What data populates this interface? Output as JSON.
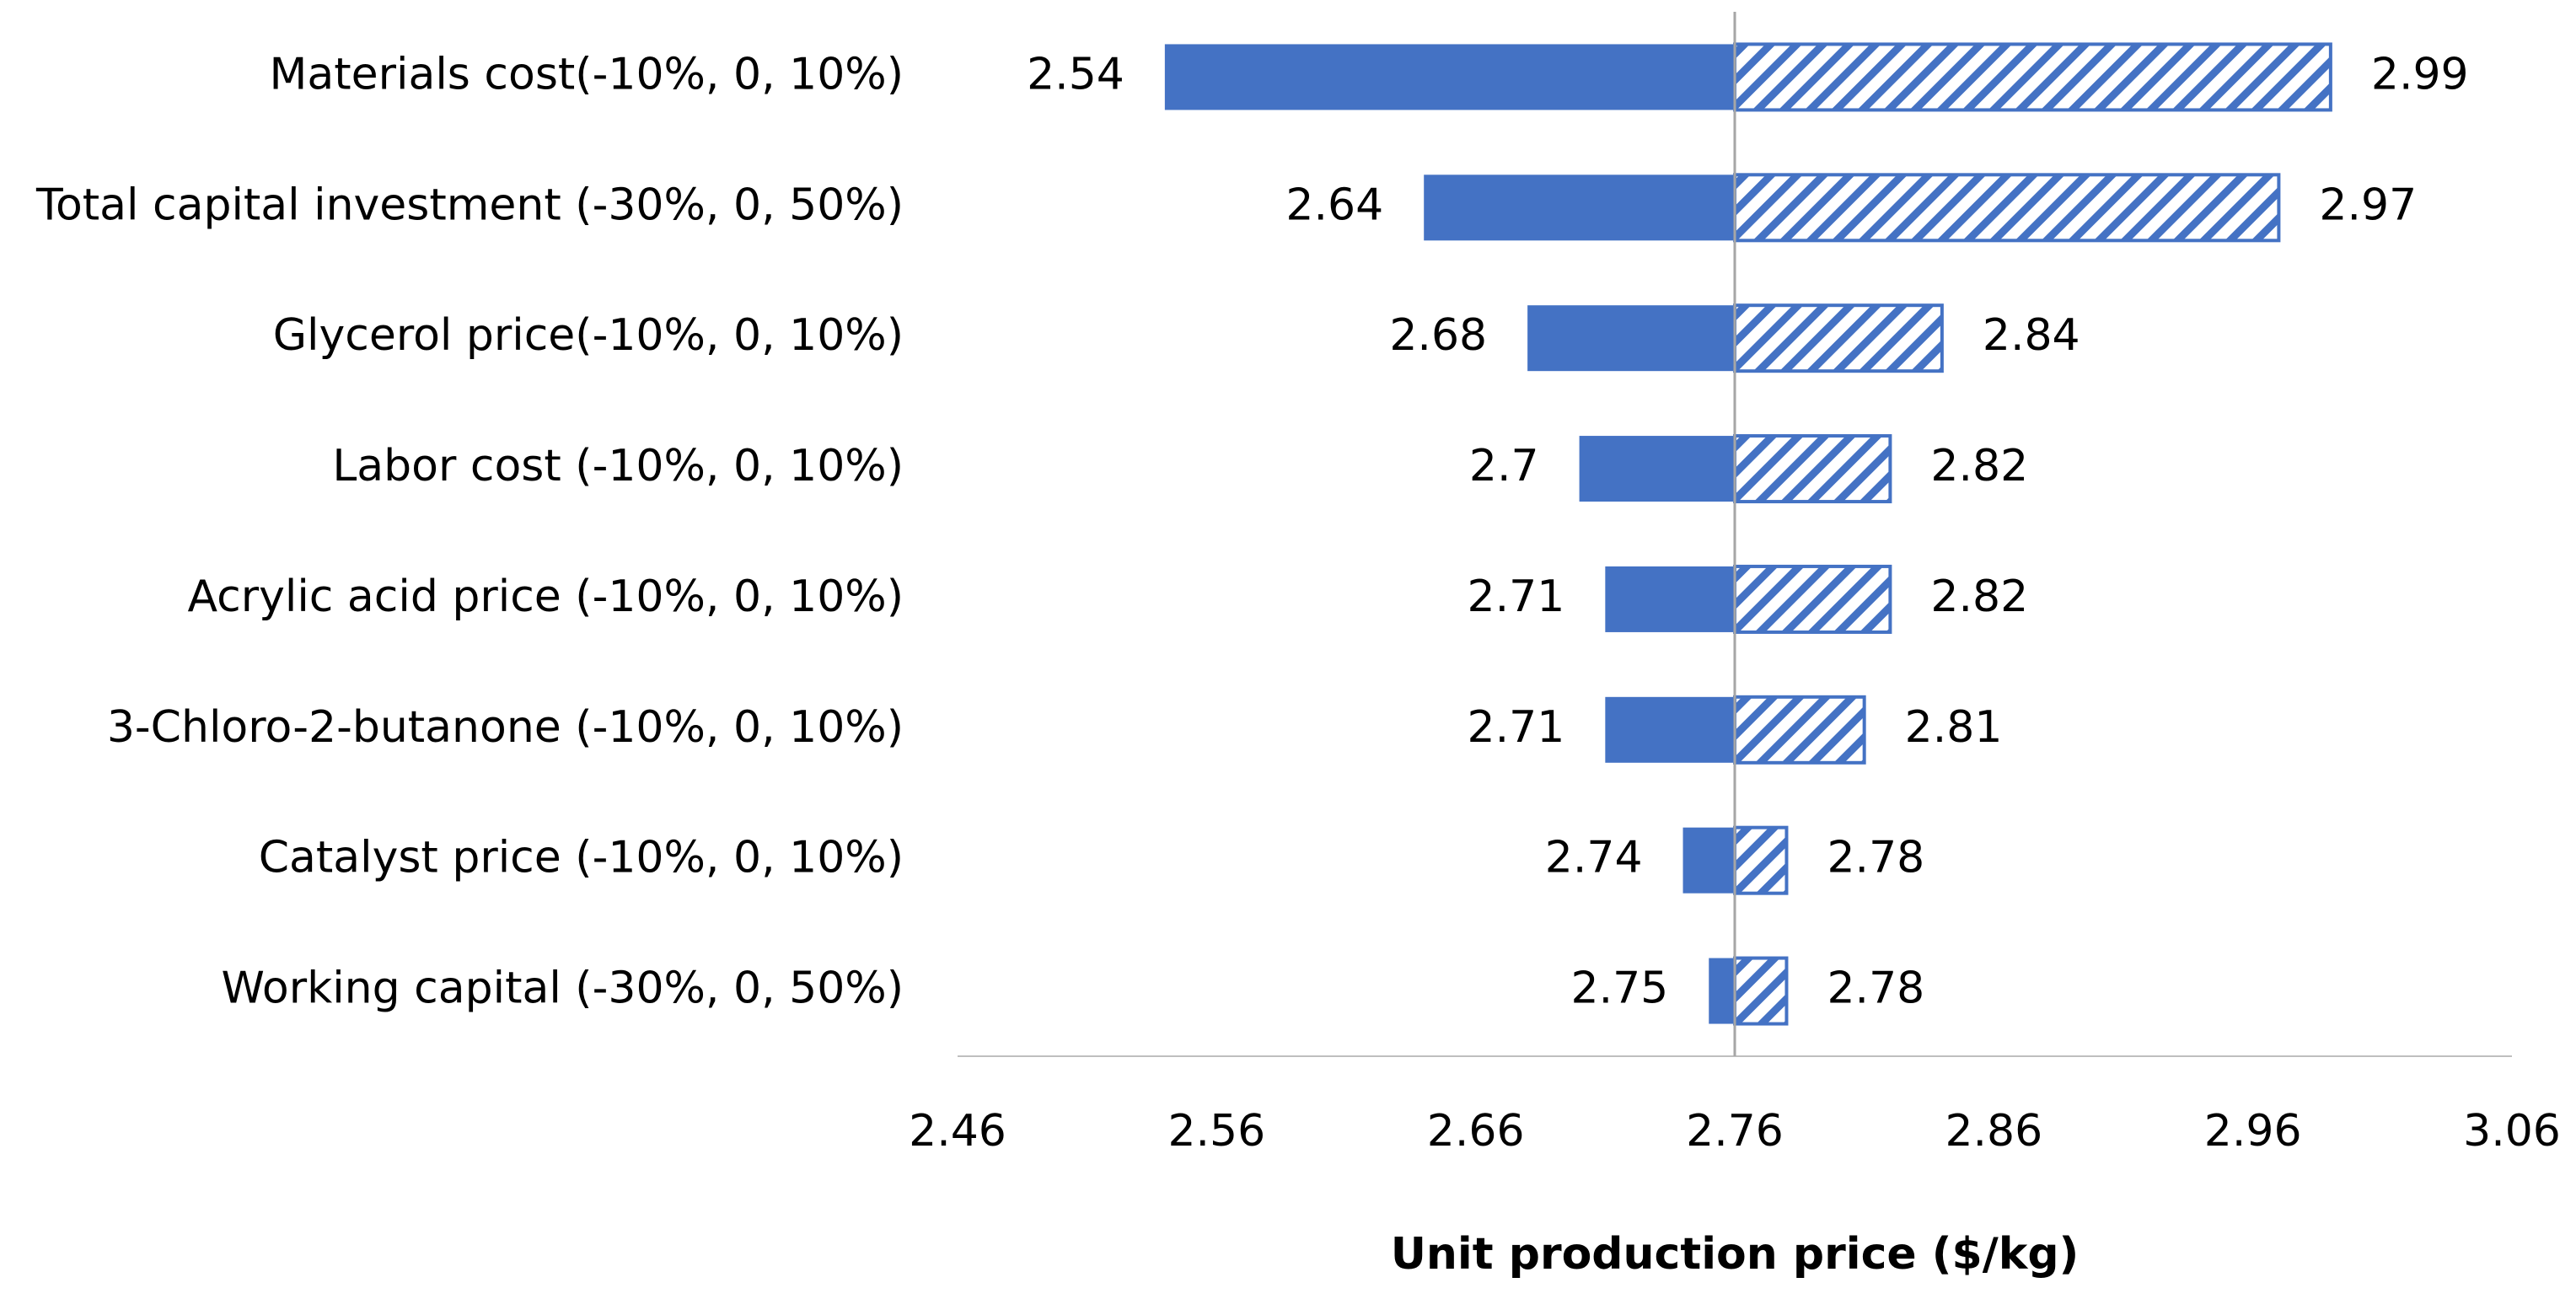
{
  "chart_data": {
    "type": "tornado",
    "categories": [
      "Materials cost(-10%, 0, 10%)",
      "Total capital investment (-30%, 0, 50%)",
      "Glycerol price(-10%, 0, 10%)",
      "Labor cost (-10%, 0, 10%)",
      "Acrylic acid price (-10%, 0, 10%)",
      "3-Chloro-2-butanone  (-10%, 0, 10%)",
      "Catalyst price (-10%, 0, 10%)",
      "Working capital (-30%, 0, 50%)"
    ],
    "series": [
      {
        "color": "#4472c4",
        "fill": "solid",
        "values": [
          2.54,
          2.64,
          2.68,
          2.7,
          2.71,
          2.71,
          2.74,
          2.75
        ]
      },
      {
        "color": "#4472c4",
        "fill": "hatch",
        "values": [
          2.99,
          2.97,
          2.84,
          2.82,
          2.82,
          2.81,
          2.78,
          2.78
        ]
      }
    ],
    "base": 2.76,
    "xlim": [
      2.46,
      3.06
    ],
    "xticks": [
      2.46,
      2.56,
      2.66,
      2.76,
      2.86,
      2.96,
      3.06
    ],
    "xlabel": "Unit production price ($/kg)"
  }
}
